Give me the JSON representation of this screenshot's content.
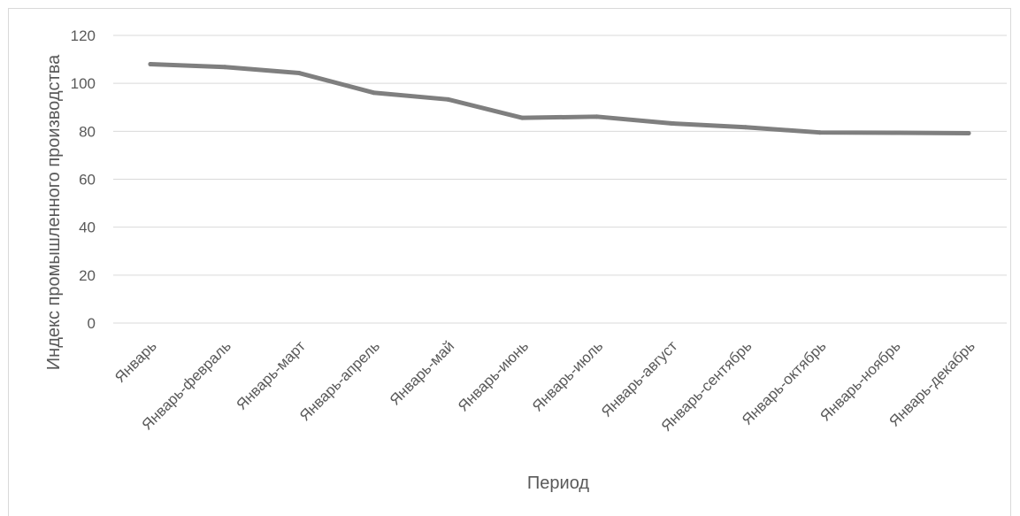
{
  "chart_data": {
    "type": "line",
    "title": "",
    "xlabel": "Период",
    "ylabel": "Индекс промышленного производства",
    "ylim": [
      0,
      120
    ],
    "yticks": [
      0,
      20,
      40,
      60,
      80,
      100,
      120
    ],
    "grid": true,
    "legend": "none",
    "categories": [
      "Январь",
      "Январь-февраль",
      "Январь-март",
      "Январь-апрель",
      "Январь-май",
      "Январь-июнь",
      "Январь-июль",
      "Январь-август",
      "Январь-сентябрь",
      "Январь-октябрь",
      "Январь-ноябрь",
      "Январь-декабрь"
    ],
    "series": [
      {
        "values": [
          108,
          106.8,
          104.3,
          96.1,
          93.3,
          85.6,
          86.1,
          83.3,
          81.7,
          79.5,
          79.4,
          79.2
        ],
        "color": "#7f7f7f"
      }
    ],
    "gridline_color": "#d9d9d9",
    "text_color": "#595959"
  }
}
